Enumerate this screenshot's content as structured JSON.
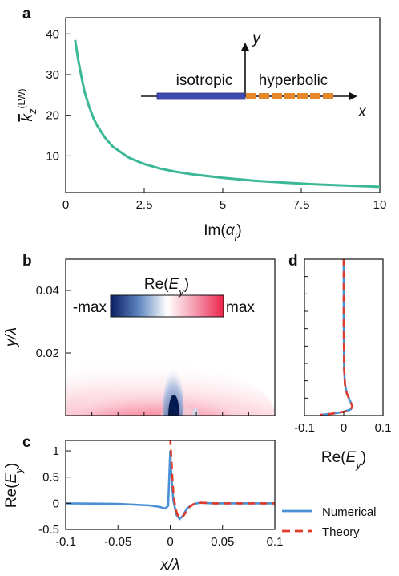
{
  "chart_data": [
    {
      "panel_label": "a",
      "type": "line",
      "xlabel": "Im(α_i)",
      "ylabel": "k̄_z^(LW)",
      "xlim": [
        0,
        10
      ],
      "ylim": [
        1,
        44
      ],
      "xticks": [
        "0",
        "2.5",
        "5",
        "7.5",
        "10"
      ],
      "yticks": [
        "10",
        "20",
        "30",
        "40"
      ],
      "grid": false,
      "series": [
        {
          "color": "#3cb896",
          "x": [
            0.3,
            0.4,
            0.5,
            0.6,
            0.75,
            0.9,
            1.0,
            1.25,
            1.5,
            2.0,
            2.5,
            3.0,
            3.5,
            4.0,
            5.0,
            6.0,
            7.0,
            8.0,
            9.0,
            10.0
          ],
          "y": [
            38.5,
            33.5,
            29.5,
            25.8,
            22.0,
            19.0,
            17.5,
            14.5,
            12.3,
            9.6,
            8.0,
            6.9,
            6.1,
            5.5,
            4.6,
            3.9,
            3.4,
            3.0,
            2.7,
            2.4
          ]
        }
      ],
      "inset": {
        "xaxis_label": "x",
        "yaxis_label": "y",
        "left_label": "isotropic",
        "right_label": "hyperbolic",
        "left_color": "#3f4ab0",
        "right_color": "#e8862a"
      }
    },
    {
      "panel_label": "b",
      "type": "heatmap",
      "ylabel": "y/λ",
      "yticks": [
        "0.02",
        "0.04"
      ],
      "ylim": [
        0,
        0.05
      ],
      "xlim": [
        -0.1,
        0.1
      ],
      "colorbar": {
        "title": "Re(E_y)",
        "min_label": "-max",
        "max_label": "max",
        "colors": [
          "#0a1d63",
          "#ffffff",
          "#ec2449"
        ]
      }
    },
    {
      "panel_label": "c",
      "type": "line",
      "xlabel": "x/λ",
      "ylabel": "Re(E_y)",
      "xlim": [
        -0.1,
        0.1
      ],
      "ylim": [
        -0.5,
        1.2
      ],
      "xticks": [
        "-0.1",
        "-0.05",
        "0",
        "0.05",
        "0.1"
      ],
      "yticks": [
        "-0.5",
        "0",
        "0.5",
        "1"
      ],
      "series": [
        {
          "name": "Numerical",
          "color": "#4a90d6",
          "x": [
            -0.1,
            -0.05,
            -0.02,
            -0.01,
            -0.005,
            -0.002,
            0,
            0.001,
            0.003,
            0.006,
            0.009,
            0.012,
            0.016,
            0.02,
            0.025,
            0.03,
            0.04,
            0.06,
            0.1
          ],
          "y": [
            0,
            -0.01,
            -0.04,
            -0.07,
            -0.1,
            -0.05,
            1.0,
            0.55,
            0.05,
            -0.22,
            -0.3,
            -0.24,
            -0.1,
            -0.04,
            0.0,
            0.01,
            0.0,
            0.0,
            0.0
          ]
        },
        {
          "name": "Theory",
          "color": "#e03a2b",
          "x": [
            0.0,
            0.001,
            0.002,
            0.003,
            0.005,
            0.008,
            0.011,
            0.014,
            0.018,
            0.022,
            0.026,
            0.03,
            0.04,
            0.06,
            0.1
          ],
          "y": [
            1.25,
            0.9,
            0.5,
            0.2,
            -0.1,
            -0.27,
            -0.28,
            -0.2,
            -0.08,
            -0.02,
            0.01,
            0.01,
            0.0,
            0.0,
            0.0
          ]
        }
      ]
    },
    {
      "panel_label": "d",
      "type": "line",
      "xlabel": "Re(E_y)",
      "xlim": [
        -0.1,
        0.1
      ],
      "ylim": [
        0,
        0.05
      ],
      "xticks": [
        "-0.1",
        "0",
        "0.1"
      ],
      "series": [
        {
          "name": "Numerical",
          "color": "#4a90d6",
          "x": [
            0.0,
            0.0,
            0.001,
            0.003,
            0.008,
            0.015,
            0.022,
            0.018,
            0.0,
            -0.03,
            -0.06
          ],
          "y": [
            0.05,
            0.03,
            0.015,
            0.01,
            0.007,
            0.005,
            0.003,
            0.002,
            0.0012,
            0.0006,
            0.0002
          ]
        },
        {
          "name": "Theory",
          "color": "#e03a2b",
          "x": [
            0.0,
            0.0,
            0.001,
            0.003,
            0.008,
            0.015,
            0.022,
            0.018,
            0.0,
            -0.03,
            -0.06
          ],
          "y": [
            0.05,
            0.03,
            0.015,
            0.01,
            0.007,
            0.005,
            0.003,
            0.002,
            0.0012,
            0.0006,
            0.0002
          ]
        }
      ]
    }
  ],
  "legend": {
    "entries": [
      "Numerical",
      "Theory"
    ]
  }
}
